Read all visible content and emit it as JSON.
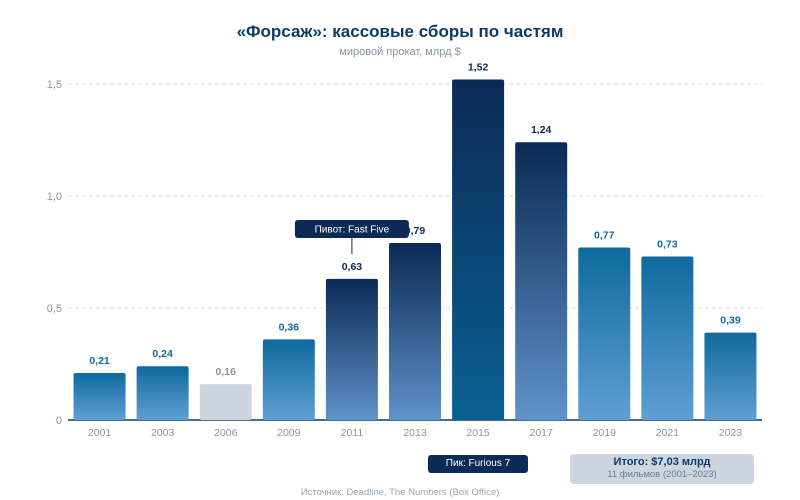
{
  "chart_data": {
    "type": "bar",
    "title": "«Форсаж»: кассовые сборы по частям",
    "subtitle": "мировой прокат, млрд $",
    "categories": [
      "2001",
      "2003",
      "2006",
      "2009",
      "2011",
      "2013",
      "2015",
      "2017",
      "2019",
      "2021",
      "2023"
    ],
    "values": [
      0.21,
      0.24,
      0.16,
      0.36,
      0.63,
      0.79,
      1.52,
      1.24,
      0.77,
      0.73,
      0.39
    ],
    "value_labels": [
      "0,21",
      "0,24",
      "0,16",
      "0,36",
      "0,63",
      "0,79",
      "1,52",
      "1,24",
      "0,77",
      "0,73",
      "0,39"
    ],
    "y_ticks": [
      0,
      0.5,
      1.0,
      1.5
    ],
    "y_tick_labels": [
      "0",
      "0,5",
      "1,0",
      "1,5"
    ],
    "ylim": [
      0,
      1.5
    ],
    "grid": true,
    "annotation": {
      "category": "2011",
      "text": "Пивот: Fast Five"
    },
    "peak_label": "Пик: Furious 7",
    "total_label": "Итого: $7,03 млрд",
    "total_sublabel": "11 фильмов (2001–2023)",
    "source": "Источник: Deadline, The Numbers (Box Office)",
    "colors": {
      "teal_top": "#0e6a9e",
      "teal_bottom": "#5f9fd4",
      "navy_top": "#0b2a55",
      "navy_bottom": "#5f93c9",
      "peak": "#0a6193",
      "muted": "#cdd6e0",
      "label_teal": "#0e6a9e",
      "label_navy": "#0b2a55",
      "label_muted": "#8a96a3",
      "axis": "#0e3a66",
      "grid": "#d7dde3",
      "tick_text": "#8a96a3"
    }
  }
}
